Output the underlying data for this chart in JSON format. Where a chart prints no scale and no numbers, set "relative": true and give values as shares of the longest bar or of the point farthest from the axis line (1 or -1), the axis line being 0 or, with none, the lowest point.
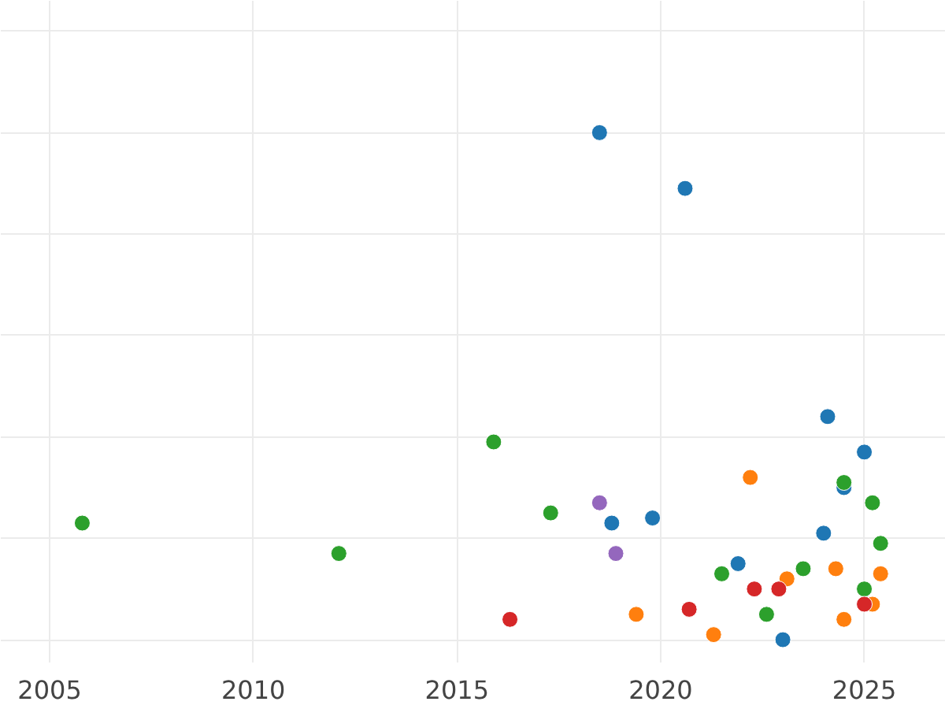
{
  "chart_data": {
    "type": "scatter",
    "relative": true,
    "marker": "circle",
    "grid": true,
    "tick_labels": "x",
    "xlim": [
      2003.8,
      2027.0
    ],
    "xticks": [
      2005,
      2010,
      2015,
      2020,
      2025
    ],
    "series": [
      {
        "color": "#1f77b4",
        "x": [
          2018.5,
          2020.6,
          2024.1,
          2025.0,
          2024.5,
          2018.8,
          2019.8,
          2024.0,
          2021.9,
          2023.0
        ],
        "values": [
          1,
          0.89,
          0.44,
          0.37,
          0.3,
          0.23,
          0.24,
          0.21,
          0.15,
          0
        ]
      },
      {
        "color": "#2ca02c",
        "x": [
          2005.8,
          2012.1,
          2015.9,
          2017.3,
          2024.5,
          2025.2,
          2025.4,
          2021.5,
          2023.5,
          2025.0,
          2022.6
        ],
        "values": [
          0.23,
          0.17,
          0.39,
          0.25,
          0.31,
          0.27,
          0.19,
          0.13,
          0.14,
          0.1,
          0.05
        ]
      },
      {
        "color": "#ff7f0e",
        "x": [
          2022.2,
          2024.3,
          2025.4,
          2023.1,
          2025.2,
          2024.5,
          2019.4,
          2021.3
        ],
        "values": [
          0.32,
          0.14,
          0.13,
          0.12,
          0.07,
          0.04,
          0.05,
          0.01
        ]
      },
      {
        "color": "#d62728",
        "x": [
          2016.3,
          2020.7,
          2022.3,
          2022.9,
          2025.0
        ],
        "values": [
          0.04,
          0.06,
          0.1,
          0.1,
          0.07
        ]
      },
      {
        "color": "#9467bd",
        "x": [
          2018.5,
          2018.9
        ],
        "values": [
          0.27,
          0.17
        ]
      }
    ]
  }
}
